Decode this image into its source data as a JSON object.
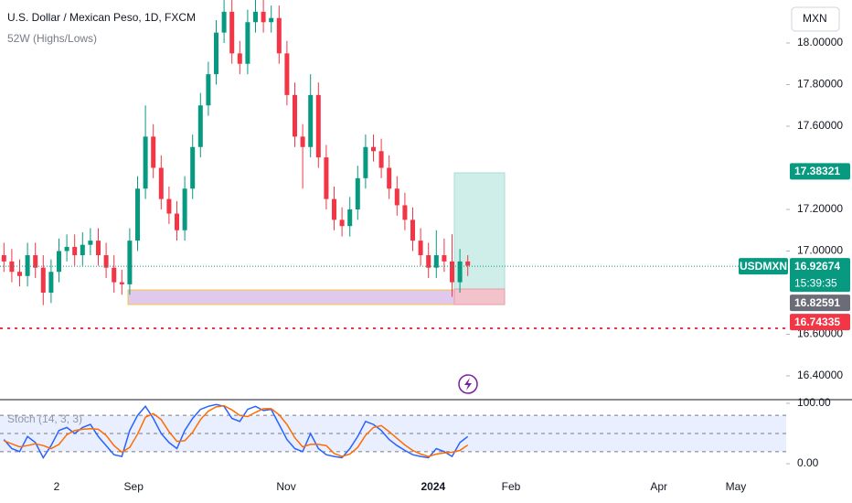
{
  "chart_data": [
    {
      "type": "candlestick",
      "title": "U.S. Dollar / Mexican Peso, 1D, FXCM",
      "subtitle": "52W (Highs/Lows)",
      "currency": "MXN",
      "symbol": "USDMXN",
      "countdown": "15:39:35",
      "up_color": "#089981",
      "down_color": "#f23645",
      "open": [
        16.98,
        16.95,
        16.9,
        16.88,
        16.98,
        16.92,
        16.8,
        16.9,
        17.0,
        17.02,
        16.98,
        17.03,
        17.05,
        16.98,
        16.92,
        16.85,
        16.84,
        17.05,
        17.3,
        17.55,
        17.4,
        17.25,
        17.18,
        17.1,
        17.3,
        17.5,
        17.7,
        17.85,
        18.05,
        18.15,
        17.95,
        17.9,
        18.1,
        18.15,
        18.1,
        18.12,
        17.95,
        17.75,
        17.55,
        17.5,
        17.75,
        17.45,
        17.25,
        17.15,
        17.12,
        17.2,
        17.35,
        17.5,
        17.48,
        17.4,
        17.3,
        17.22,
        17.15,
        17.05,
        16.98,
        16.92,
        16.98,
        16.95,
        16.85,
        16.95
      ],
      "high": [
        17.04,
        17.01,
        16.96,
        17.04,
        17.04,
        16.98,
        16.96,
        17.06,
        17.08,
        17.08,
        17.09,
        17.11,
        17.11,
        17.04,
        16.98,
        16.91,
        17.11,
        17.36,
        17.7,
        17.61,
        17.46,
        17.31,
        17.24,
        17.36,
        17.56,
        17.76,
        17.91,
        18.11,
        18.21,
        18.21,
        18.01,
        18.16,
        18.21,
        18.21,
        18.18,
        18.18,
        18.01,
        17.81,
        17.61,
        17.85,
        17.81,
        17.51,
        17.31,
        17.21,
        17.26,
        17.41,
        17.56,
        17.56,
        17.54,
        17.46,
        17.36,
        17.28,
        17.21,
        17.11,
        17.04,
        17.1,
        17.06,
        17.08,
        17.01,
        16.98
      ],
      "low": [
        16.9,
        16.85,
        16.83,
        16.83,
        16.87,
        16.74,
        16.75,
        16.85,
        16.95,
        16.93,
        16.93,
        16.98,
        16.93,
        16.87,
        16.8,
        16.79,
        16.79,
        17.0,
        17.25,
        17.35,
        17.2,
        17.13,
        17.05,
        17.05,
        17.25,
        17.45,
        17.65,
        17.8,
        18.0,
        17.9,
        17.85,
        17.85,
        18.05,
        18.05,
        18.05,
        17.9,
        17.7,
        17.5,
        17.3,
        17.45,
        17.4,
        17.2,
        17.1,
        17.07,
        17.07,
        17.15,
        17.3,
        17.43,
        17.35,
        17.25,
        17.17,
        17.1,
        17.0,
        16.93,
        16.87,
        16.87,
        16.9,
        16.78,
        16.8,
        16.88
      ],
      "close": [
        16.95,
        16.9,
        16.88,
        16.98,
        16.92,
        16.8,
        16.9,
        17.0,
        17.02,
        16.98,
        17.03,
        17.05,
        16.98,
        16.92,
        16.85,
        16.84,
        17.05,
        17.3,
        17.55,
        17.4,
        17.25,
        17.18,
        17.1,
        17.3,
        17.5,
        17.7,
        17.85,
        18.05,
        18.15,
        17.95,
        17.9,
        18.1,
        18.15,
        18.1,
        18.12,
        17.95,
        17.75,
        17.55,
        17.5,
        17.75,
        17.45,
        17.25,
        17.15,
        17.12,
        17.2,
        17.35,
        17.5,
        17.48,
        17.4,
        17.3,
        17.22,
        17.15,
        17.05,
        16.98,
        16.92,
        16.98,
        16.95,
        16.85,
        16.95,
        16.93
      ],
      "xlim": [
        0,
        100
      ],
      "xticks": [
        {
          "value": 7.2,
          "label": "2"
        },
        {
          "value": 17,
          "label": "Sep"
        },
        {
          "value": 36.4,
          "label": "Nov"
        },
        {
          "value": 55.1,
          "label": "2024"
        },
        {
          "value": 65,
          "label": "Feb"
        },
        {
          "value": 83.8,
          "label": "Apr"
        },
        {
          "value": 93.6,
          "label": "May"
        }
      ],
      "ylim": [
        16.2857,
        18.2066
      ],
      "yticks": [
        {
          "value": 16.4,
          "label": "16.40000"
        },
        {
          "value": 16.6,
          "label": "16.60000"
        },
        {
          "value": 17.0,
          "label": "17.00000"
        },
        {
          "value": 17.2,
          "label": "17.20000"
        },
        {
          "value": 17.6,
          "label": "17.60000"
        },
        {
          "value": 17.8,
          "label": "17.80000"
        },
        {
          "value": 18.0,
          "label": "18.00000"
        }
      ],
      "price_labels": [
        {
          "value": 17.38321,
          "color": "#089981"
        },
        {
          "value": 16.92674,
          "color": "#089981"
        },
        {
          "value": 16.82591,
          "color": "#6a6d78"
        },
        {
          "value": 16.74335,
          "color": "#f23645"
        }
      ]
    },
    {
      "type": "line",
      "title": "Stoch (14, 3, 3)",
      "series": [
        {
          "color": "#2962ff",
          "values": [
            40,
            25,
            20,
            45,
            35,
            10,
            30,
            55,
            60,
            50,
            60,
            65,
            45,
            30,
            15,
            12,
            55,
            80,
            95,
            75,
            50,
            35,
            25,
            55,
            75,
            90,
            95,
            98,
            95,
            75,
            70,
            90,
            95,
            88,
            90,
            65,
            40,
            25,
            20,
            50,
            25,
            15,
            12,
            10,
            25,
            45,
            70,
            65,
            55,
            40,
            30,
            22,
            15,
            12,
            10,
            25,
            20,
            12,
            35,
            45
          ]
        },
        {
          "color": "#ff6d00",
          "values": [
            38,
            33,
            28,
            30,
            33,
            30,
            25,
            32,
            48,
            55,
            57,
            58,
            57,
            47,
            30,
            19,
            27,
            49,
            77,
            83,
            73,
            53,
            37,
            38,
            52,
            73,
            87,
            94,
            96,
            89,
            80,
            78,
            85,
            91,
            91,
            81,
            65,
            43,
            28,
            32,
            32,
            30,
            17,
            12,
            16,
            27,
            47,
            60,
            63,
            53,
            42,
            31,
            22,
            16,
            12,
            16,
            18,
            19,
            22,
            31
          ]
        }
      ],
      "bands": [
        20,
        50,
        80
      ],
      "ylim": [
        -12,
        106
      ],
      "yticks": [
        {
          "value": 0,
          "label": "0.00"
        },
        {
          "value": 100,
          "label": "100.00"
        }
      ]
    }
  ]
}
